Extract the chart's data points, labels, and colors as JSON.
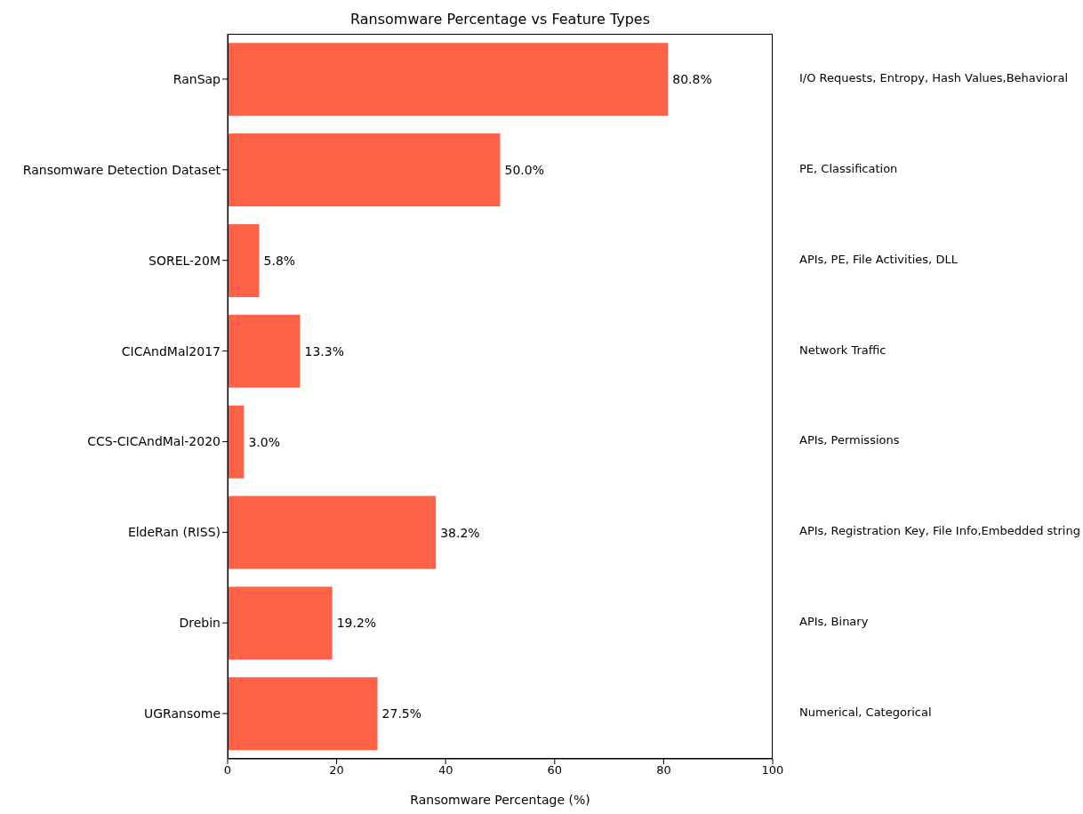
{
  "chart_data": {
    "type": "bar",
    "orientation": "horizontal",
    "title": "Ransomware Percentage vs Feature Types",
    "xlabel": "Ransomware Percentage (%)",
    "categories": [
      "RanSap",
      "Ransomware Detection Dataset",
      "SOREL-20M",
      "CICAndMal2017",
      "CCS-CICAndMal-2020",
      "EldeRan (RISS)",
      "Drebin",
      "UGRansome"
    ],
    "values": [
      80.8,
      50.0,
      5.8,
      13.3,
      3.0,
      38.2,
      19.2,
      27.5
    ],
    "value_labels": [
      "80.8%",
      "50.0%",
      "5.8%",
      "13.3%",
      "3.0%",
      "38.2%",
      "19.2%",
      "27.5%"
    ],
    "color": "#ff6347",
    "xlim": [
      0,
      100
    ],
    "xticks": [
      0,
      20,
      40,
      60,
      80,
      100
    ],
    "grid": false,
    "annotations": [
      "I/O Requests, Entropy, Hash Values,Behavioral",
      "PE, Classification",
      "APIs, PE, File Activities, DLL",
      "Network Traffic",
      "APIs, Permissions",
      "APIs, Registration Key, File Info,Embedded string",
      "APIs, Binary",
      "Numerical, Categorical"
    ]
  }
}
